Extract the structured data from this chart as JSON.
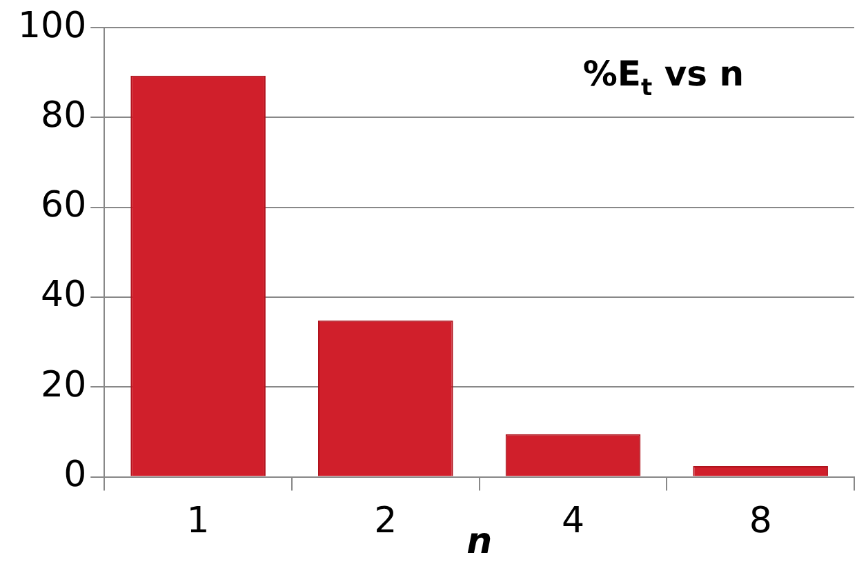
{
  "chart_data": {
    "type": "bar",
    "title": "%E$_{t}$ vs n",
    "xlabel": "n",
    "categories": [
      "1",
      "2",
      "4",
      "8"
    ],
    "values": [
      89.3,
      34.8,
      9.5,
      2.4
    ],
    "color": "#d01f2b",
    "ylim": [
      0,
      100
    ],
    "yticks": [
      0,
      20,
      40,
      60,
      80,
      100
    ],
    "grid": "y"
  }
}
